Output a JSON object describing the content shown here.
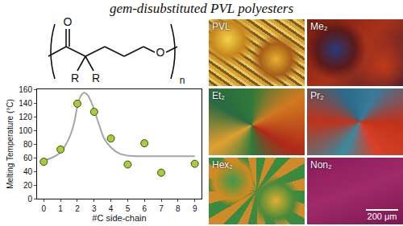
{
  "title": "gem-disubstituted PVL polyesters",
  "structure": {
    "carbonyl_oxygen": "O",
    "substituents": [
      "R",
      "R"
    ],
    "chain_oxygen": "O",
    "repeat": "n"
  },
  "chart_data": {
    "type": "scatter",
    "xlabel": "#C side-chain",
    "ylabel": "Melting Temperature (°C)",
    "xlim": [
      -0.4,
      9.4
    ],
    "ylim": [
      0,
      160
    ],
    "xticks": [
      0,
      1,
      2,
      3,
      4,
      5,
      6,
      7,
      8,
      9
    ],
    "yticks": [
      0,
      20,
      40,
      60,
      80,
      100,
      120,
      140,
      160
    ],
    "grid": false,
    "series": [
      {
        "type": "line",
        "color": "#a6a6a6",
        "line_style": "solid",
        "x": [
          0,
          0.5,
          1,
          1.5,
          1.8,
          2,
          2.2,
          2.4,
          2.6,
          2.8,
          3,
          3.3,
          3.6,
          4,
          4.5,
          5,
          6,
          7,
          8,
          9
        ],
        "values": [
          56,
          60,
          68,
          88,
          110,
          135,
          150,
          155,
          152,
          143,
          130,
          108,
          88,
          75,
          66,
          63,
          62,
          62,
          62,
          62
        ]
      },
      {
        "type": "scatter",
        "color": "#a8cc3c",
        "marker": "circle",
        "x": [
          0,
          1,
          2,
          3,
          4,
          5,
          6,
          7,
          9
        ],
        "values": [
          54,
          72,
          139,
          127,
          88,
          50,
          81,
          38,
          51
        ]
      }
    ]
  },
  "micrographs": {
    "panels": [
      {
        "label": "PVL"
      },
      {
        "label": "Me₂"
      },
      {
        "label": "Et₂"
      },
      {
        "label": "Pr₂"
      },
      {
        "label": "Hex₂"
      },
      {
        "label": "Non₂"
      }
    ],
    "scale_bar": "200 μm"
  }
}
